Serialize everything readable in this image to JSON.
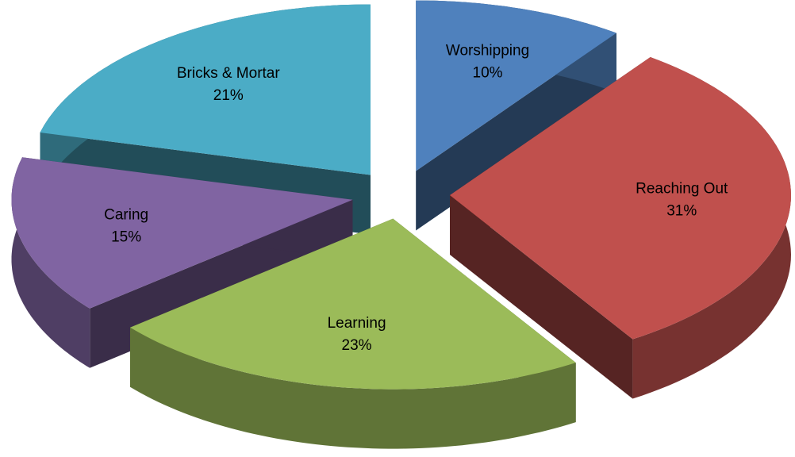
{
  "chart_data": {
    "type": "pie",
    "categories": [
      "Worshipping",
      "Reaching Out",
      "Learning",
      "Caring",
      "Bricks & Mortar"
    ],
    "values": [
      10,
      31,
      23,
      15,
      21
    ],
    "value_labels": [
      "10%",
      "31%",
      "23%",
      "15%",
      "21%"
    ],
    "colors": [
      "#4f81bd",
      "#c0504d",
      "#9bbb59",
      "#8064a2",
      "#4bacc6"
    ]
  }
}
